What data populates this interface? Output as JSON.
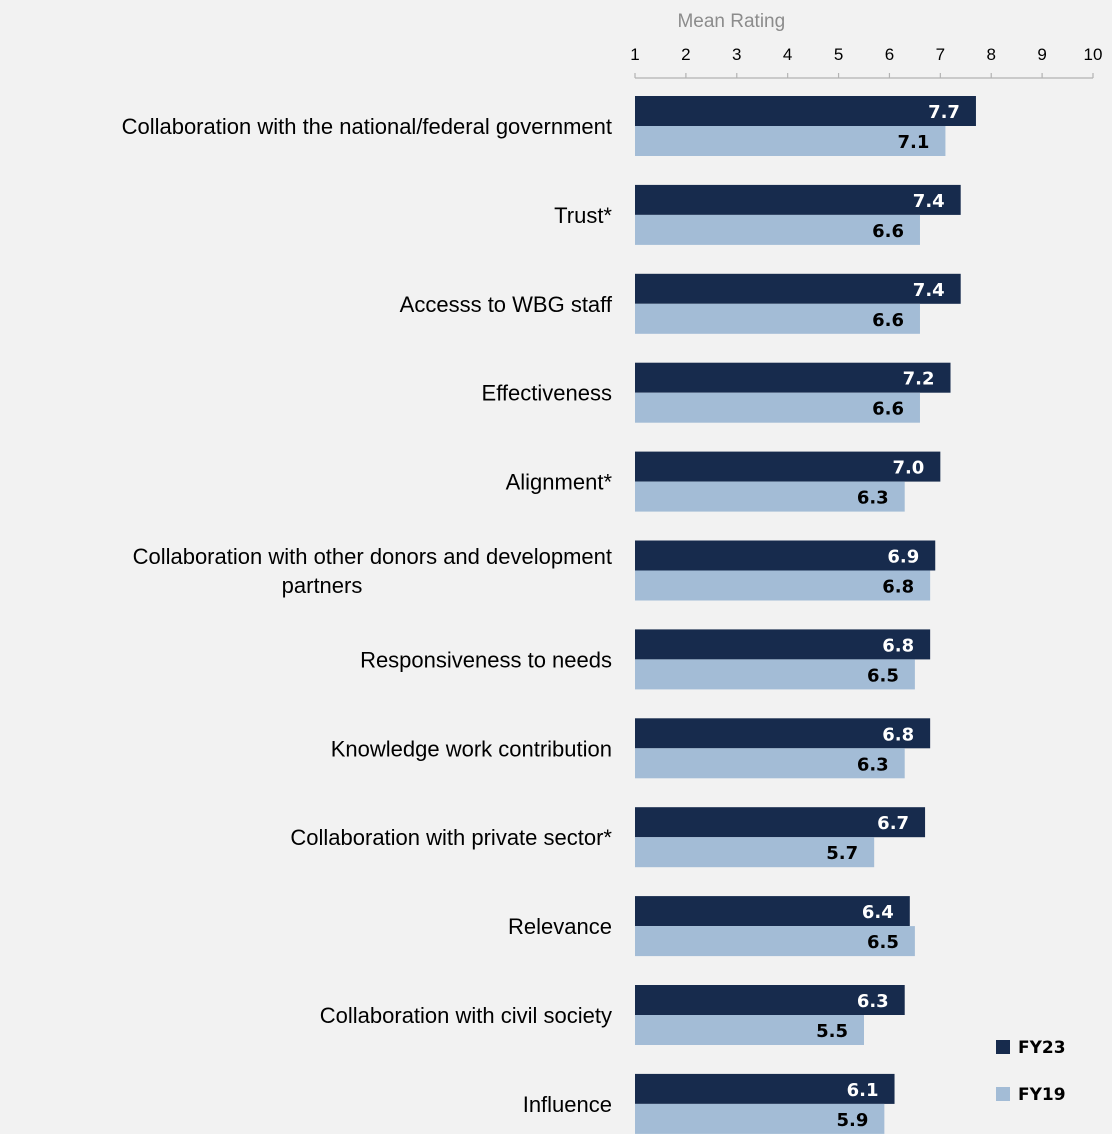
{
  "chart_data": {
    "type": "bar",
    "orientation": "horizontal",
    "xlabel": "Mean Rating",
    "xlim": [
      1,
      10
    ],
    "ticks": [
      1,
      2,
      3,
      4,
      5,
      6,
      7,
      8,
      9,
      10
    ],
    "grid": false,
    "legend_position": "bottom-right",
    "categories": [
      [
        "Collaboration with the national/federal government"
      ],
      [
        "Trust*"
      ],
      [
        "Accesss to WBG staff"
      ],
      [
        "Effectiveness"
      ],
      [
        "Alignment*"
      ],
      [
        "Collaboration with other donors and development",
        "partners"
      ],
      [
        "Responsiveness to needs"
      ],
      [
        "Knowledge work contribution"
      ],
      [
        "Collaboration with private sector*"
      ],
      [
        "Relevance"
      ],
      [
        "Collaboration with civil society"
      ],
      [
        "Influence"
      ]
    ],
    "series": [
      {
        "name": "FY23",
        "color": "#172b4d",
        "label_color": "#ffffff",
        "values": [
          7.7,
          7.4,
          7.4,
          7.2,
          7.0,
          6.9,
          6.8,
          6.8,
          6.7,
          6.4,
          6.3,
          6.1
        ],
        "labels": [
          "7.7",
          "7.4",
          "7.4",
          "7.2",
          "7.0",
          "6.9",
          "6.8",
          "6.8",
          "6.7",
          "6.4",
          "6.3",
          "6.1"
        ]
      },
      {
        "name": "FY19",
        "color": "#a3bcd6",
        "label_color": "#000000",
        "values": [
          7.1,
          6.6,
          6.6,
          6.6,
          6.3,
          6.8,
          6.5,
          6.3,
          5.7,
          6.5,
          5.5,
          5.9
        ],
        "labels": [
          "7.1",
          "6.6",
          "6.6",
          "6.6",
          "6.3",
          "6.8",
          "6.5",
          "6.3",
          "5.7",
          "6.5",
          "5.5",
          "5.9"
        ]
      }
    ]
  }
}
